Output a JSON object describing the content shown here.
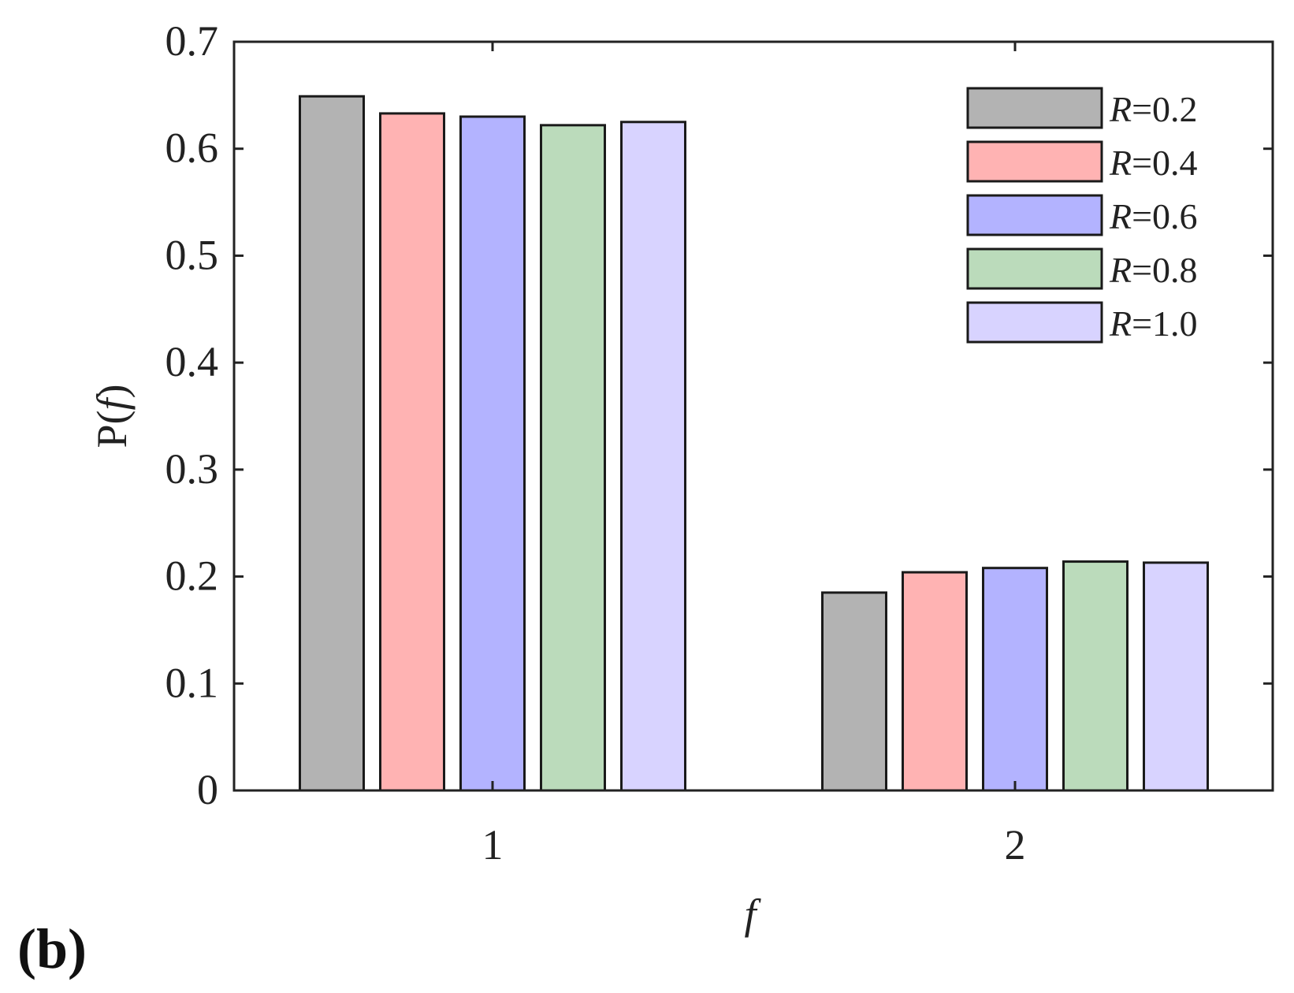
{
  "panel_label": "(b)",
  "chart_data": {
    "type": "bar",
    "title": "",
    "xlabel": "f",
    "ylabel_prefix": "P(",
    "ylabel_var": "f",
    "ylabel_suffix": ")",
    "categories": [
      "1",
      "2"
    ],
    "ylim": [
      0,
      0.7
    ],
    "yticks": [
      "0",
      "0.1",
      "0.2",
      "0.3",
      "0.4",
      "0.5",
      "0.6",
      "0.7"
    ],
    "grid": false,
    "legend_position": "top-right",
    "series": [
      {
        "name": "R=0.2",
        "name_var": "R",
        "name_value": "=0.2",
        "color": "#b3b3b3",
        "values": [
          0.649,
          0.185
        ]
      },
      {
        "name": "R=0.4",
        "name_var": "R",
        "name_value": "=0.4",
        "color": "#ffb3b3",
        "values": [
          0.633,
          0.204
        ]
      },
      {
        "name": "R=0.6",
        "name_var": "R",
        "name_value": "=0.6",
        "color": "#b3b3ff",
        "values": [
          0.63,
          0.208
        ]
      },
      {
        "name": "R=0.8",
        "name_var": "R",
        "name_value": "=0.8",
        "color": "#bbdbbb",
        "values": [
          0.622,
          0.214
        ]
      },
      {
        "name": "R=1.0",
        "name_var": "R",
        "name_value": "=1.0",
        "color": "#d8d3ff",
        "values": [
          0.625,
          0.213
        ]
      }
    ]
  }
}
